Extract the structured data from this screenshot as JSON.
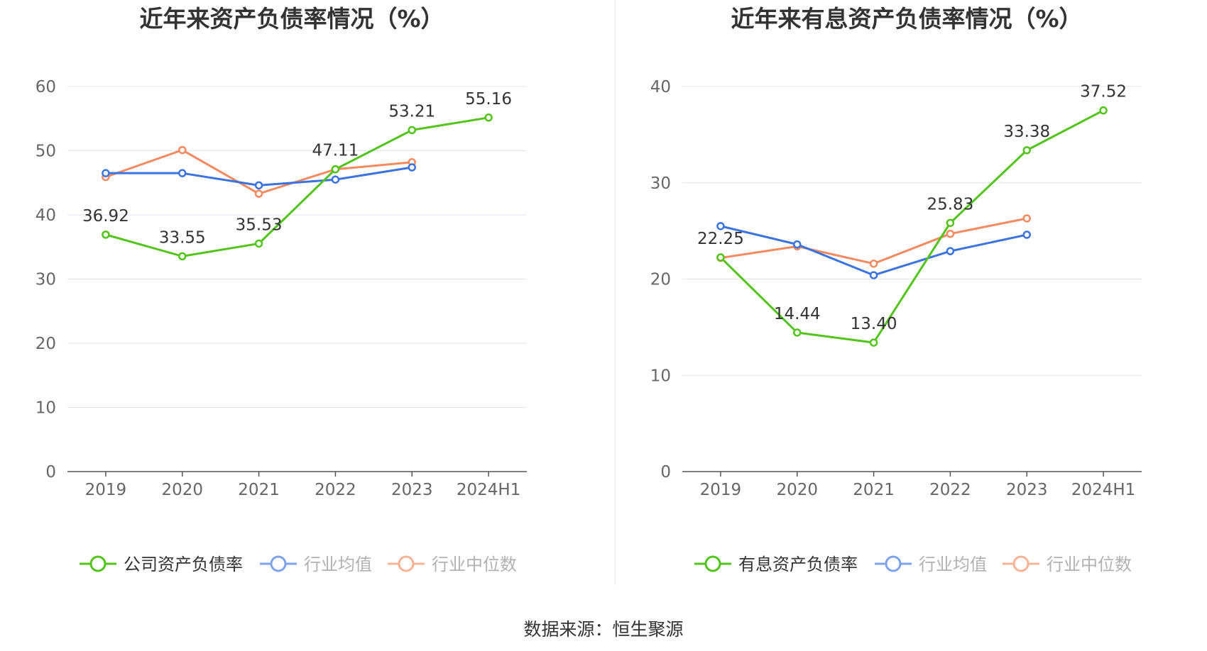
{
  "chart_data": [
    {
      "type": "line",
      "title": "近年来资产负债率情况（%）",
      "categories": [
        "2019",
        "2020",
        "2021",
        "2022",
        "2023",
        "2024H1"
      ],
      "ylim": [
        0,
        60
      ],
      "yticks": [
        0,
        10,
        20,
        30,
        40,
        50,
        60
      ],
      "grid": true,
      "legend_position": "bottom",
      "series": [
        {
          "name": "公司资产负债率",
          "color": "#52c41a",
          "values": [
            36.92,
            33.55,
            35.53,
            47.11,
            53.21,
            55.16
          ],
          "labels": [
            "36.92",
            "33.55",
            "35.53",
            "47.11",
            "53.21",
            "55.16"
          ]
        },
        {
          "name": "行业均值",
          "color": "#3b73e0",
          "values": [
            46.5,
            46.5,
            44.6,
            45.5,
            47.4,
            null
          ]
        },
        {
          "name": "行业中位数",
          "color": "#f5895f",
          "values": [
            45.9,
            50.1,
            43.3,
            47.1,
            48.2,
            null
          ]
        }
      ]
    },
    {
      "type": "line",
      "title": "近年来有息资产负债率情况（%）",
      "categories": [
        "2019",
        "2020",
        "2021",
        "2022",
        "2023",
        "2024H1"
      ],
      "ylim": [
        0,
        40
      ],
      "yticks": [
        0,
        10,
        20,
        30,
        40
      ],
      "grid": true,
      "legend_position": "bottom",
      "series": [
        {
          "name": "有息资产负债率",
          "color": "#52c41a",
          "values": [
            22.25,
            14.44,
            13.4,
            25.83,
            33.38,
            37.52
          ],
          "labels": [
            "22.25",
            "14.44",
            "13.40",
            "25.83",
            "33.38",
            "37.52"
          ]
        },
        {
          "name": "行业均值",
          "color": "#3b73e0",
          "values": [
            25.5,
            23.6,
            20.4,
            22.9,
            24.6,
            null
          ]
        },
        {
          "name": "行业中位数",
          "color": "#f5895f",
          "values": [
            22.2,
            23.4,
            21.6,
            24.7,
            26.3,
            null
          ]
        }
      ]
    }
  ],
  "footer": {
    "source": "数据来源：恒生聚源"
  }
}
